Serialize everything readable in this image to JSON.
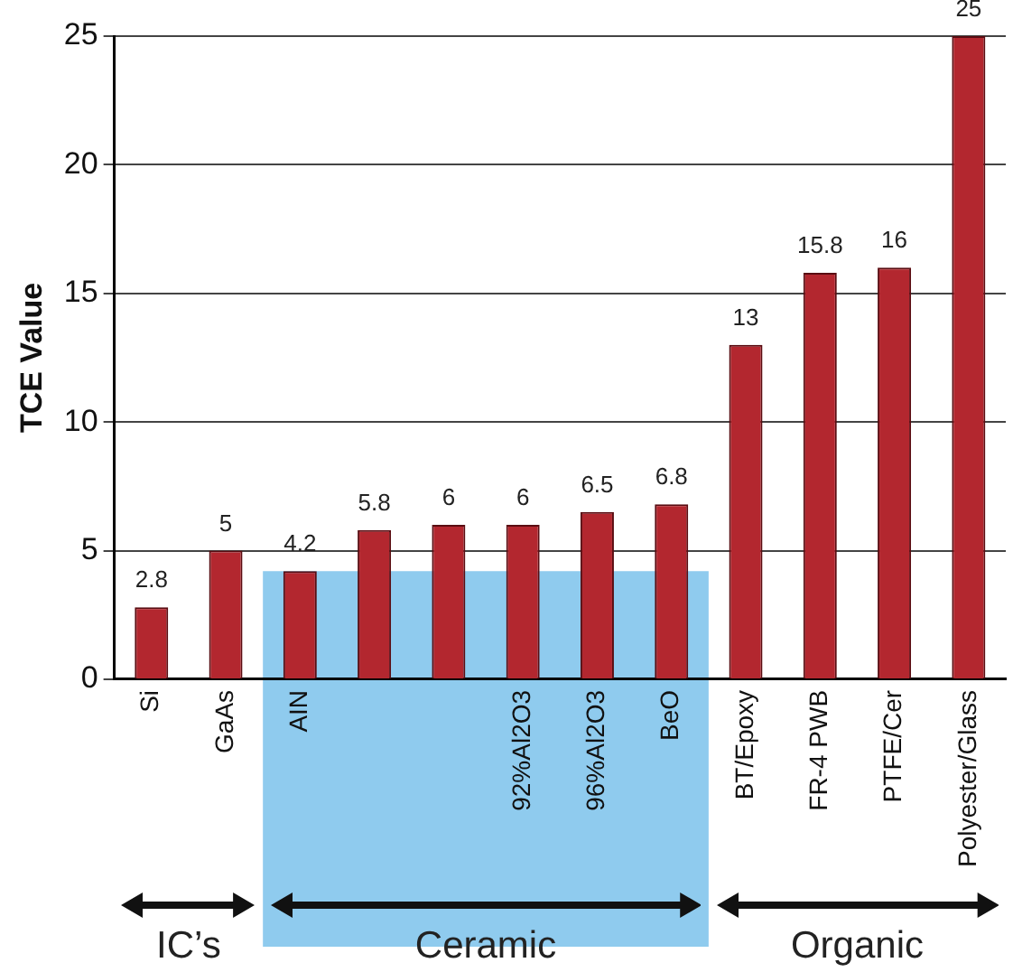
{
  "chart_data": {
    "type": "bar",
    "ylabel": "TCE Value",
    "categories": [
      "Si",
      "GaAs",
      "AIN",
      null,
      null,
      "92%Al2O3",
      "96%Al2O3",
      "BeO",
      "BT/Epoxy",
      "FR-4 PWB",
      "PTFE/Cer",
      "Polyester/Glass"
    ],
    "values": [
      2.8,
      5,
      4.2,
      5.8,
      6,
      6,
      6.5,
      6.8,
      13,
      15.8,
      16,
      25
    ],
    "color": "#b3272f",
    "ylim": [
      0,
      25
    ],
    "yticks": [
      0,
      5,
      10,
      15,
      20,
      25
    ],
    "bands": [
      {
        "axis": "x",
        "from": "AIN",
        "to": "BeO",
        "color": "#8fcbee"
      }
    ],
    "annotations": [
      "IC’s",
      "Ceramic",
      "Organic"
    ],
    "data_labels": true,
    "grid": "y",
    "legend": false
  }
}
